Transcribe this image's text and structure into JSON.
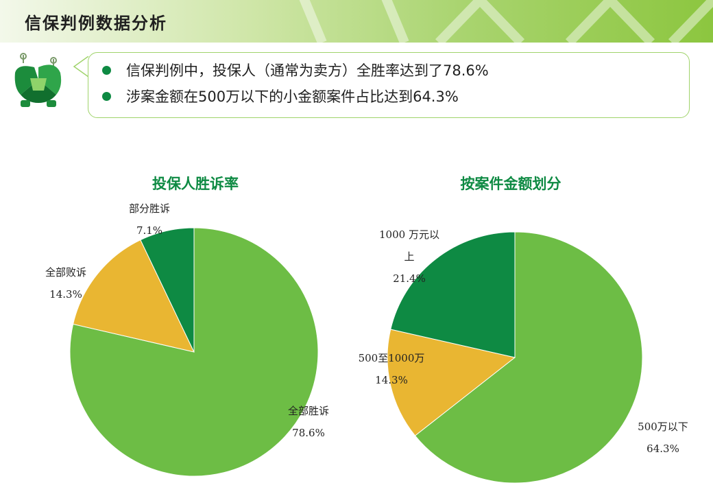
{
  "header": {
    "title": "信保判例数据分析"
  },
  "callout": {
    "bullets": [
      "信保判例中，投保人（通常为卖方）全胜率达到了78.6%",
      "涉案金额在500万以下的小金额案件占比达到64.3%"
    ]
  },
  "icons": {
    "mascot": "green-character-icon",
    "bullet": "green-dot"
  },
  "colors": {
    "light_green": "#6dbd45",
    "orange": "#e9b632",
    "dark_green": "#0e8a43",
    "title_green": "#0e8a43"
  },
  "chart_data": [
    {
      "type": "pie",
      "title": "投保人胜诉率",
      "slices": [
        {
          "label": "全部胜诉",
          "value": 78.6,
          "value_label": "78.6%",
          "color": "#6dbd45"
        },
        {
          "label": "全部败诉",
          "value": 14.3,
          "value_label": "14.3%",
          "color": "#e9b632"
        },
        {
          "label": "部分胜诉",
          "value": 7.1,
          "value_label": "7.1%",
          "color": "#0e8a43"
        }
      ]
    },
    {
      "type": "pie",
      "title": "按案件金额划分",
      "slices": [
        {
          "label": "500万以下",
          "value": 64.3,
          "value_label": "64.3%",
          "color": "#6dbd45"
        },
        {
          "label": "500至1000万",
          "value": 14.3,
          "value_label": "14.3%",
          "color": "#e9b632"
        },
        {
          "label": "1000 万元以上",
          "value": 21.4,
          "value_label": "21.4%",
          "color": "#0e8a43"
        }
      ]
    }
  ]
}
